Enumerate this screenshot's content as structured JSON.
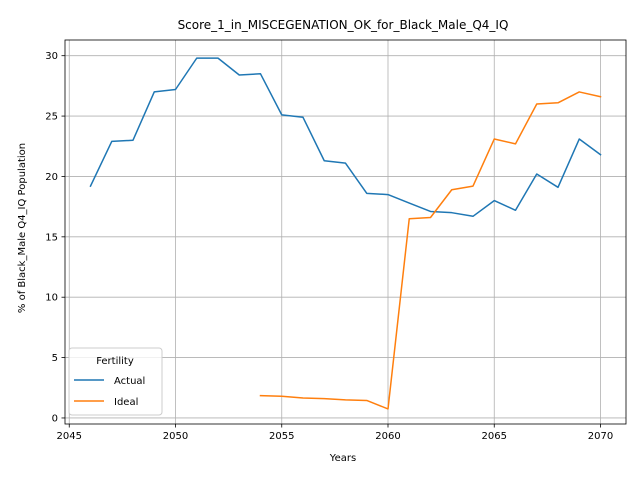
{
  "chart_data": {
    "type": "line",
    "title": "Score_1_in_MISCEGENATION_OK_for_Black_Male_Q4_IQ",
    "xlabel": "Years",
    "ylabel": "% of Black_Male Q4_IQ Population",
    "xlim": [
      2044.8,
      2071.2
    ],
    "ylim": [
      -0.5,
      31.3
    ],
    "xticks": [
      2045,
      2050,
      2055,
      2060,
      2065,
      2070
    ],
    "yticks": [
      0,
      5,
      10,
      15,
      20,
      25,
      30
    ],
    "grid": true,
    "legend": {
      "title": "Fertility",
      "placement": "lower-left"
    },
    "series": [
      {
        "name": "Actual",
        "color": "#1f77b4",
        "x": [
          2046,
          2047,
          2048,
          2049,
          2050,
          2051,
          2052,
          2053,
          2054,
          2055,
          2056,
          2057,
          2058,
          2059,
          2060,
          2061,
          2062,
          2063,
          2064,
          2065,
          2066,
          2067,
          2068,
          2069,
          2070
        ],
        "y": [
          19.2,
          22.9,
          23.0,
          27.0,
          27.2,
          29.8,
          29.8,
          28.4,
          28.5,
          25.1,
          24.9,
          21.3,
          21.1,
          18.6,
          18.5,
          17.8,
          17.1,
          17.0,
          16.7,
          18.0,
          17.2,
          20.2,
          19.1,
          23.1,
          21.8
        ]
      },
      {
        "name": "Ideal",
        "color": "#ff7f0e",
        "x": [
          2054,
          2055,
          2056,
          2057,
          2058,
          2059,
          2060,
          2061,
          2062,
          2063,
          2064,
          2065,
          2066,
          2067,
          2068,
          2069,
          2070
        ],
        "y": [
          1.85,
          1.8,
          1.65,
          1.6,
          1.5,
          1.45,
          0.75,
          16.5,
          16.6,
          18.9,
          19.2,
          23.1,
          22.7,
          26.0,
          26.1,
          27.0,
          26.6
        ]
      }
    ]
  }
}
